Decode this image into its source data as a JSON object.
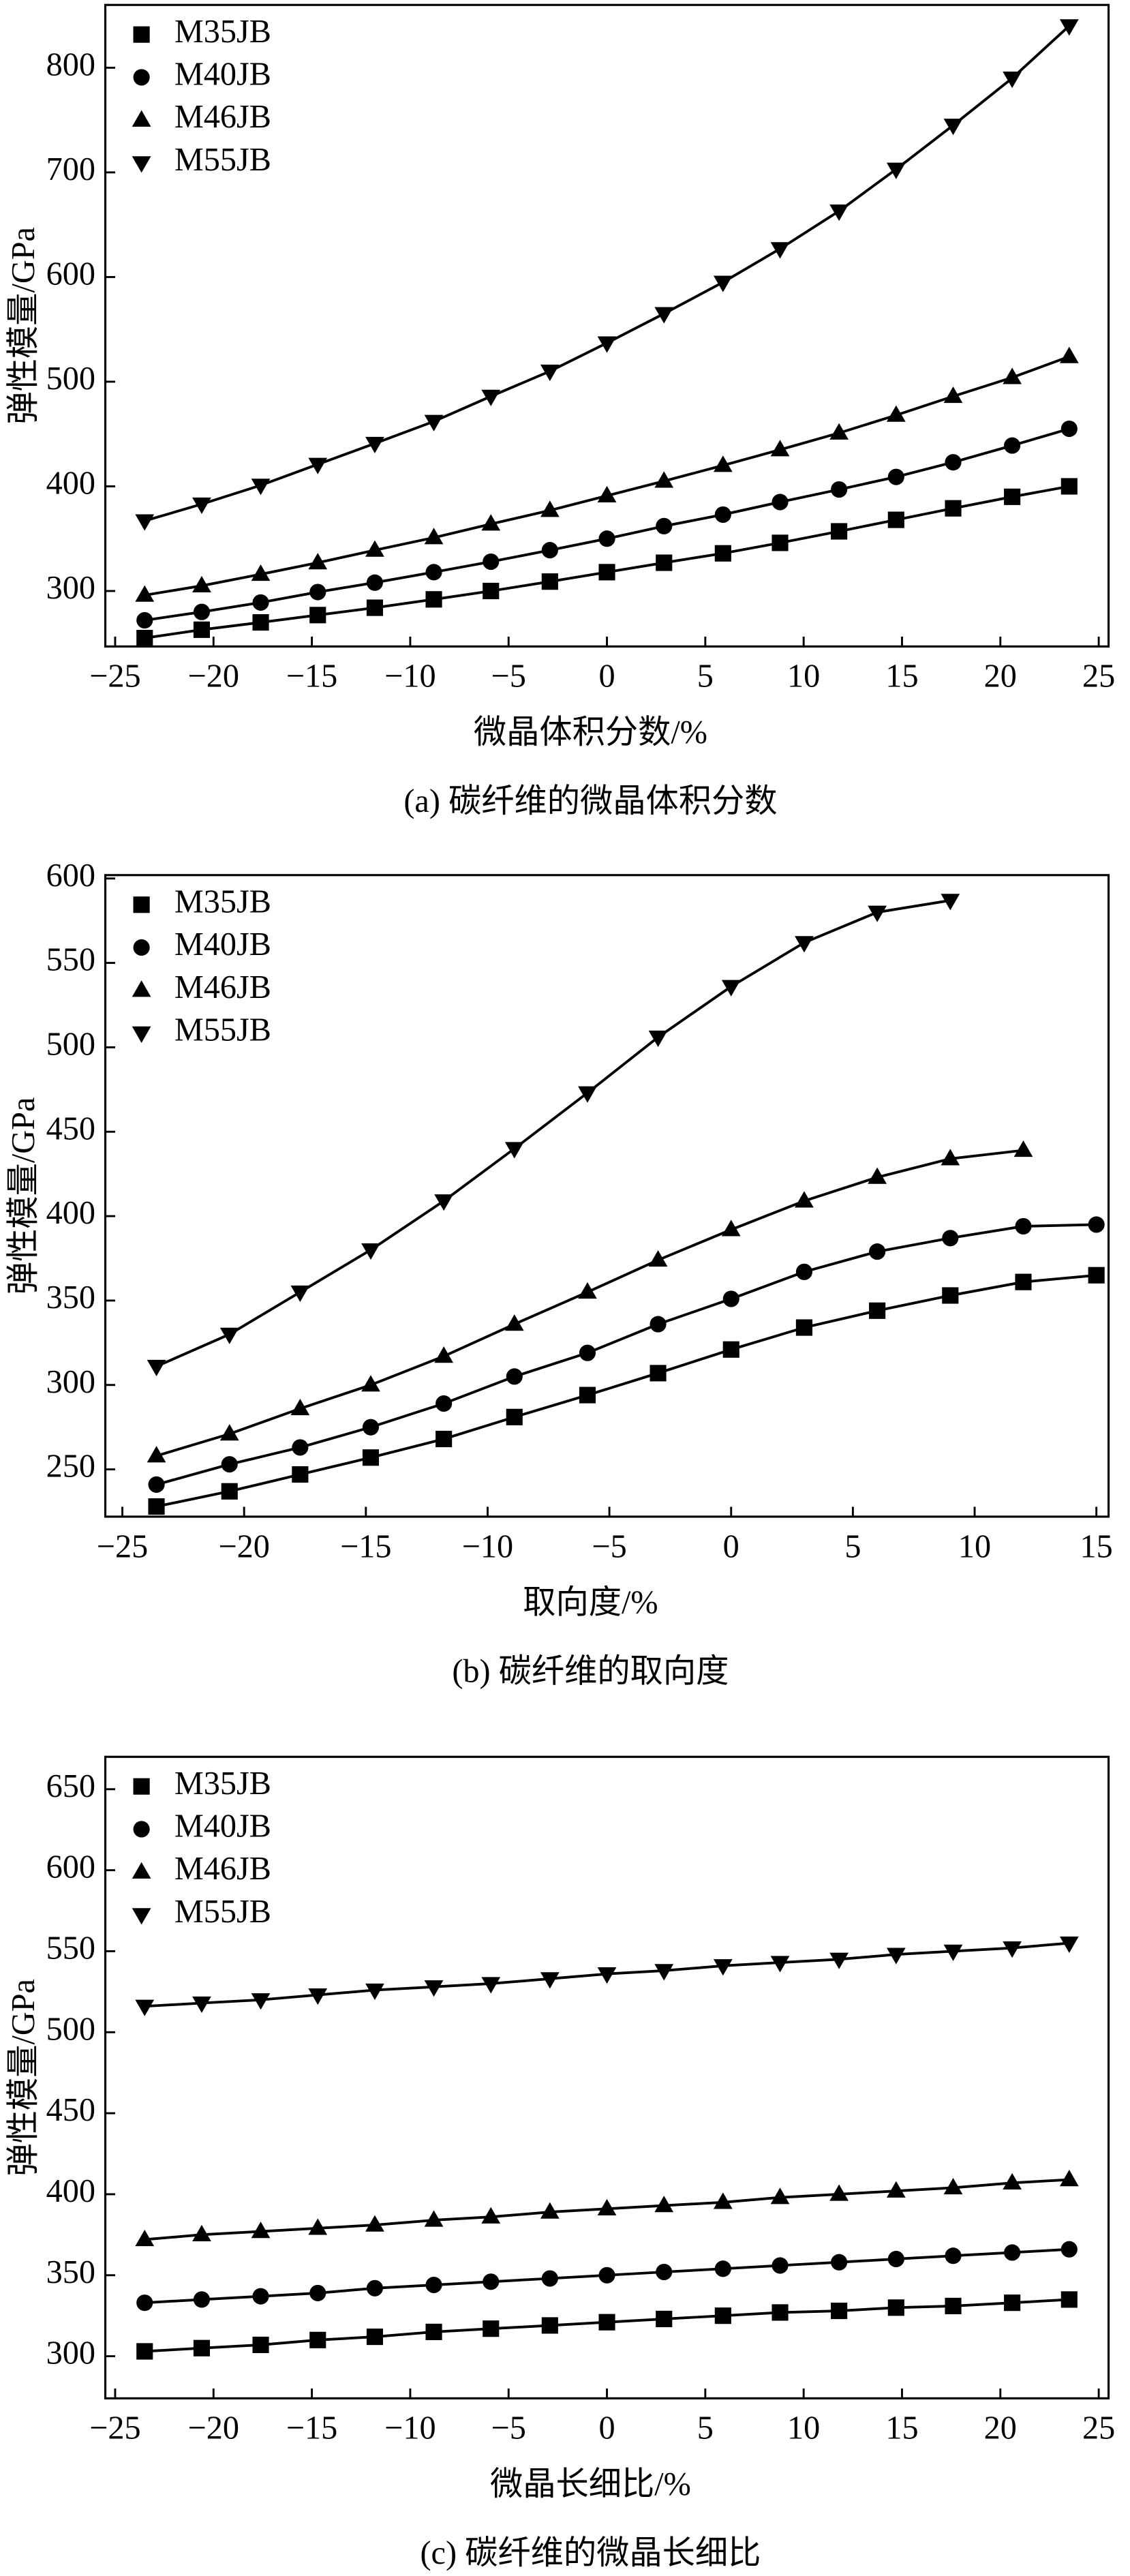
{
  "chart_data": [
    {
      "type": "line",
      "xlabel": "微晶体积分数/%",
      "ylabel": "弹性模量/GPa",
      "caption": "(a) 碳纤维的微晶体积分数",
      "x": [
        -23.5,
        -20.6,
        -17.6,
        -14.7,
        -11.8,
        -8.8,
        -5.9,
        -2.9,
        0,
        2.9,
        5.9,
        8.8,
        11.8,
        14.7,
        17.6,
        20.6,
        23.5
      ],
      "xlim": [
        -25.5,
        25.5
      ],
      "xticks": [
        {
          "value": -25,
          "label": "−25"
        },
        {
          "value": -20,
          "label": "−20"
        },
        {
          "value": -15,
          "label": "−15"
        },
        {
          "value": -10,
          "label": "−10"
        },
        {
          "value": -5,
          "label": "−5"
        },
        0,
        5,
        10,
        15,
        20,
        25
      ],
      "ylim": [
        247,
        860
      ],
      "yticks": [
        300,
        400,
        500,
        600,
        700,
        800
      ],
      "legend": "upper left",
      "series": [
        {
          "name": "M35JB",
          "color": "#000000",
          "marker": "square",
          "values": [
            255,
            263,
            270,
            277,
            284,
            292,
            300,
            309,
            318,
            327,
            336,
            346,
            357,
            368,
            379,
            390,
            400
          ]
        },
        {
          "name": "M40JB",
          "color": "#000000",
          "marker": "circle",
          "values": [
            272,
            280,
            289,
            299,
            308,
            318,
            328,
            339,
            350,
            362,
            373,
            385,
            397,
            409,
            423,
            439,
            455
          ]
        },
        {
          "name": "M46JB",
          "color": "#000000",
          "marker": "triangle-up",
          "values": [
            296,
            305,
            316,
            327,
            339,
            351,
            364,
            377,
            391,
            405,
            420,
            435,
            451,
            468,
            486,
            504,
            524
          ]
        },
        {
          "name": "M55JB",
          "color": "#000000",
          "marker": "triangle-down",
          "values": [
            367,
            383,
            401,
            421,
            441,
            462,
            486,
            510,
            537,
            565,
            595,
            627,
            663,
            703,
            745,
            790,
            840
          ]
        }
      ]
    },
    {
      "type": "line",
      "xlabel": "取向度/%",
      "ylabel": "弹性模量/GPa",
      "caption": "(b) 碳纤维的取向度",
      "x": [
        -23.6,
        -20.6,
        -17.7,
        -14.8,
        -11.8,
        -8.9,
        -5.9,
        -3,
        0,
        3,
        6,
        9,
        12,
        15
      ],
      "xlim": [
        -25.7,
        15.5
      ],
      "xticks": [
        {
          "value": -25,
          "label": "−25"
        },
        {
          "value": -20,
          "label": "−20"
        },
        {
          "value": -15,
          "label": "−15"
        },
        {
          "value": -10,
          "label": "−10"
        },
        {
          "value": -5,
          "label": "−5"
        },
        0,
        5,
        10,
        15
      ],
      "ylim": [
        222,
        602
      ],
      "yticks": [
        250,
        300,
        350,
        400,
        450,
        500,
        550,
        600
      ],
      "legend": "upper left",
      "series": [
        {
          "name": "M35JB",
          "color": "#000000",
          "marker": "square",
          "values": [
            228,
            237,
            247,
            257,
            268,
            281,
            294,
            307,
            321,
            334,
            344,
            353,
            361,
            365
          ]
        },
        {
          "name": "M40JB",
          "color": "#000000",
          "marker": "circle",
          "values": [
            241,
            253,
            263,
            275,
            289,
            305,
            319,
            336,
            351,
            367,
            379,
            387,
            394,
            395
          ]
        },
        {
          "name": "M46JB",
          "color": "#000000",
          "marker": "triangle-up",
          "values": [
            258,
            271,
            286,
            300,
            317,
            336,
            355,
            374,
            392,
            409,
            423,
            434,
            439,
            null
          ]
        },
        {
          "name": "M55JB",
          "color": "#000000",
          "marker": "triangle-down",
          "values": [
            311,
            330,
            355,
            380,
            409,
            440,
            473,
            506,
            536,
            562,
            580,
            587,
            null,
            null
          ]
        }
      ]
    },
    {
      "type": "line",
      "xlabel": "微晶长细比/%",
      "ylabel": "弹性模量/GPa",
      "caption": "(c) 碳纤维的微晶长细比",
      "x": [
        -23.5,
        -20.6,
        -17.6,
        -14.7,
        -11.8,
        -8.8,
        -5.9,
        -2.9,
        0,
        2.9,
        5.9,
        8.8,
        11.8,
        14.7,
        17.6,
        20.6,
        23.5
      ],
      "xlim": [
        -25.5,
        25.5
      ],
      "xticks": [
        {
          "value": -25,
          "label": "−25"
        },
        {
          "value": -20,
          "label": "−20"
        },
        {
          "value": -15,
          "label": "−15"
        },
        {
          "value": -10,
          "label": "−10"
        },
        {
          "value": -5,
          "label": "−5"
        },
        0,
        5,
        10,
        15,
        20,
        25
      ],
      "ylim": [
        274,
        670
      ],
      "yticks": [
        300,
        350,
        400,
        450,
        500,
        550,
        600,
        650
      ],
      "legend": "upper left",
      "series": [
        {
          "name": "M35JB",
          "color": "#000000",
          "marker": "square",
          "values": [
            303,
            305,
            307,
            310,
            312,
            315,
            317,
            319,
            321,
            323,
            325,
            327,
            328,
            330,
            331,
            333,
            335
          ]
        },
        {
          "name": "M40JB",
          "color": "#000000",
          "marker": "circle",
          "values": [
            333,
            335,
            337,
            339,
            342,
            344,
            346,
            348,
            350,
            352,
            354,
            356,
            358,
            360,
            362,
            364,
            366
          ]
        },
        {
          "name": "M46JB",
          "color": "#000000",
          "marker": "triangle-up",
          "values": [
            372,
            375,
            377,
            379,
            381,
            384,
            386,
            389,
            391,
            393,
            395,
            398,
            400,
            402,
            404,
            407,
            409
          ]
        },
        {
          "name": "M55JB",
          "color": "#000000",
          "marker": "triangle-down",
          "values": [
            516,
            518,
            520,
            523,
            526,
            528,
            530,
            533,
            536,
            538,
            541,
            543,
            545,
            548,
            550,
            552,
            555
          ]
        }
      ]
    }
  ]
}
